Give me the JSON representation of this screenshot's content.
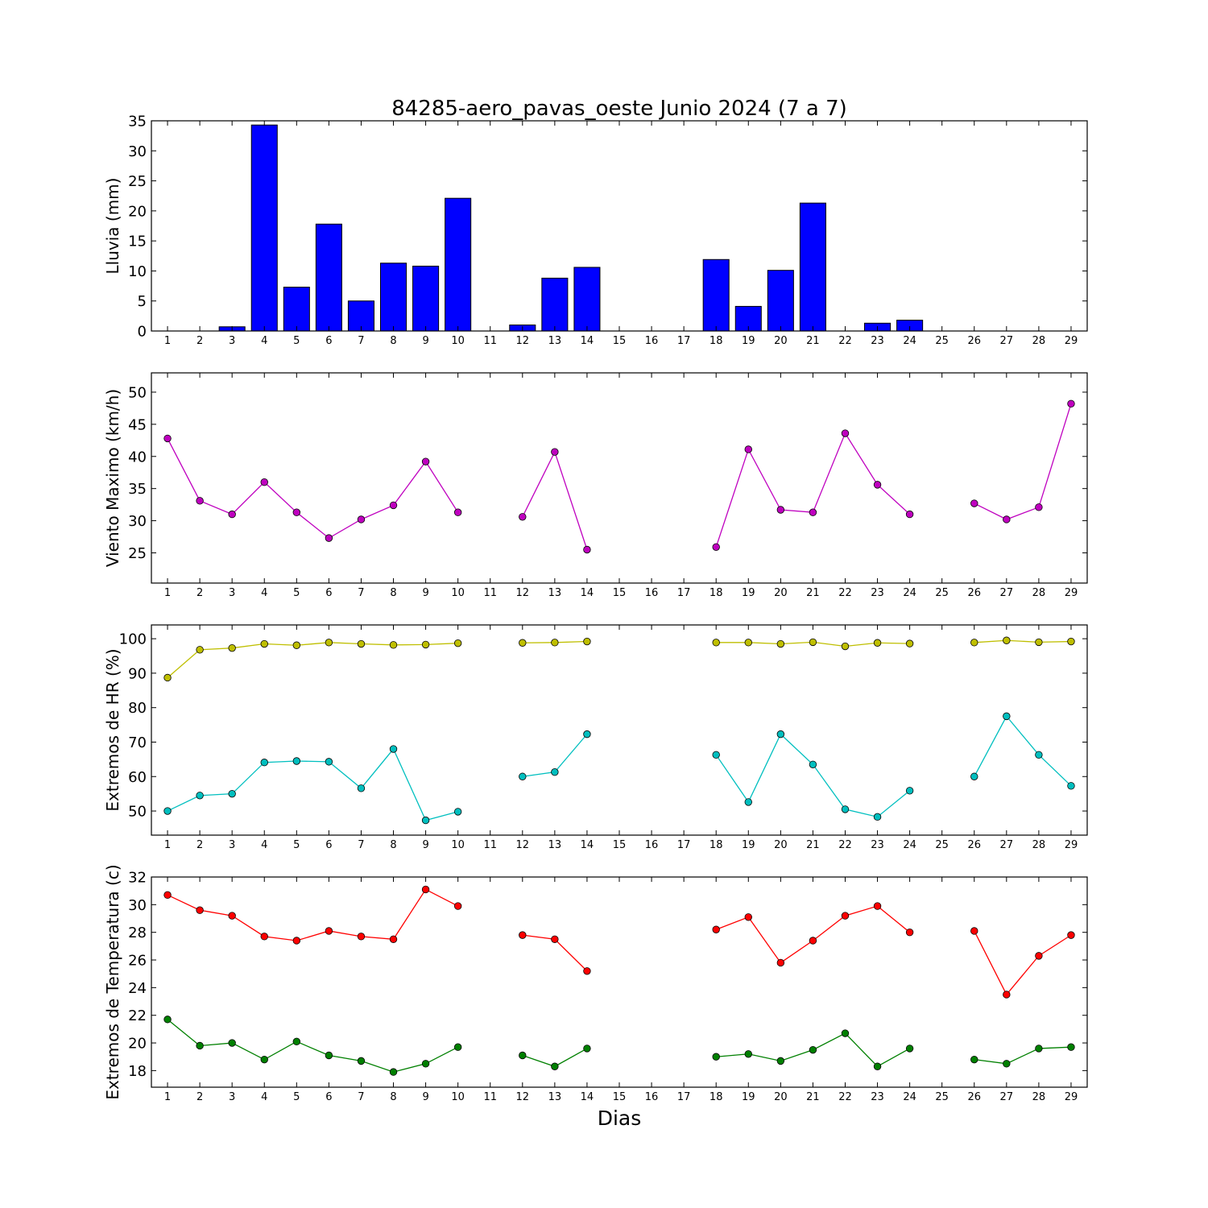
{
  "figure": {
    "title": "84285-aero_pavas_oeste Junio 2024  (7 a 7)",
    "xlabel": "Dias"
  },
  "chart_data": [
    {
      "type": "bar",
      "ylabel": "Lluvia (mm)",
      "ylim": [
        0,
        35
      ],
      "yticks": [
        0,
        5,
        10,
        15,
        20,
        25,
        30,
        35
      ],
      "xticks": [
        1,
        2,
        3,
        4,
        5,
        6,
        7,
        8,
        9,
        10,
        11,
        12,
        13,
        14,
        15,
        16,
        17,
        18,
        19,
        20,
        21,
        22,
        23,
        24,
        25,
        26,
        27,
        28,
        29
      ],
      "grid": false,
      "series": [
        {
          "color": "#0000ff",
          "x": [
            1,
            2,
            3,
            4,
            5,
            6,
            7,
            8,
            9,
            10,
            11,
            12,
            13,
            14,
            15,
            16,
            17,
            18,
            19,
            20,
            21,
            22,
            23,
            24,
            25,
            26,
            27,
            28,
            29
          ],
          "values": [
            0,
            0,
            0.7,
            34.3,
            7.3,
            17.8,
            5.0,
            11.3,
            10.8,
            22.1,
            0,
            1.0,
            8.8,
            10.6,
            0,
            0,
            0,
            11.9,
            4.1,
            10.1,
            21.3,
            0,
            1.3,
            1.8,
            0,
            0,
            0,
            0,
            0
          ]
        }
      ]
    },
    {
      "type": "line",
      "ylabel": "Viento Maximo (km/h)",
      "ylim": [
        20.3,
        53
      ],
      "yticks": [
        25,
        30,
        35,
        40,
        45,
        50
      ],
      "xticks": [
        1,
        2,
        3,
        4,
        5,
        6,
        7,
        8,
        9,
        10,
        11,
        12,
        13,
        14,
        15,
        16,
        17,
        18,
        19,
        20,
        21,
        22,
        23,
        24,
        25,
        26,
        27,
        28,
        29
      ],
      "grid": false,
      "series": [
        {
          "color": "#bf00bf",
          "x": [
            1,
            2,
            3,
            4,
            5,
            6,
            7,
            8,
            9,
            10,
            11,
            12,
            13,
            14,
            15,
            16,
            17,
            18,
            19,
            20,
            21,
            22,
            23,
            24,
            25,
            26,
            27,
            28,
            29
          ],
          "values": [
            42.8,
            33.1,
            31.0,
            36.0,
            31.3,
            27.3,
            30.2,
            32.4,
            39.2,
            31.3,
            null,
            30.6,
            40.7,
            25.5,
            null,
            null,
            null,
            25.9,
            41.1,
            31.7,
            31.3,
            43.6,
            35.6,
            31.0,
            null,
            32.7,
            30.2,
            32.1,
            48.2
          ]
        }
      ]
    },
    {
      "type": "line",
      "ylabel": "Extremos de HR (%)",
      "ylim": [
        43,
        104
      ],
      "yticks": [
        50,
        60,
        70,
        80,
        90,
        100
      ],
      "xticks": [
        1,
        2,
        3,
        4,
        5,
        6,
        7,
        8,
        9,
        10,
        11,
        12,
        13,
        14,
        15,
        16,
        17,
        18,
        19,
        20,
        21,
        22,
        23,
        24,
        25,
        26,
        27,
        28,
        29
      ],
      "grid": false,
      "series": [
        {
          "color": "#bfbf00",
          "x": [
            1,
            2,
            3,
            4,
            5,
            6,
            7,
            8,
            9,
            10,
            11,
            12,
            13,
            14,
            15,
            16,
            17,
            18,
            19,
            20,
            21,
            22,
            23,
            24,
            25,
            26,
            27,
            28,
            29
          ],
          "values": [
            88.7,
            96.8,
            97.3,
            98.5,
            98.1,
            98.9,
            98.5,
            98.2,
            98.3,
            98.7,
            null,
            98.8,
            98.9,
            99.2,
            null,
            null,
            null,
            98.9,
            98.9,
            98.5,
            99.0,
            97.8,
            98.8,
            98.6,
            null,
            98.9,
            99.5,
            99.0,
            99.2
          ]
        },
        {
          "color": "#00bfbf",
          "x": [
            1,
            2,
            3,
            4,
            5,
            6,
            7,
            8,
            9,
            10,
            11,
            12,
            13,
            14,
            15,
            16,
            17,
            18,
            19,
            20,
            21,
            22,
            23,
            24,
            25,
            26,
            27,
            28,
            29
          ],
          "values": [
            50.0,
            54.5,
            55.0,
            64.1,
            64.5,
            64.3,
            56.6,
            68.0,
            47.3,
            49.8,
            null,
            60.0,
            61.3,
            72.3,
            null,
            null,
            null,
            66.3,
            52.6,
            72.3,
            63.5,
            50.5,
            48.3,
            55.9,
            null,
            60.0,
            77.5,
            66.3,
            57.3
          ]
        }
      ]
    },
    {
      "type": "line",
      "ylabel": "Extremos de Temperatura (c)",
      "ylim": [
        16.8,
        32
      ],
      "yticks": [
        18,
        20,
        22,
        24,
        26,
        28,
        30,
        32
      ],
      "xticks": [
        1,
        2,
        3,
        4,
        5,
        6,
        7,
        8,
        9,
        10,
        11,
        12,
        13,
        14,
        15,
        16,
        17,
        18,
        19,
        20,
        21,
        22,
        23,
        24,
        25,
        26,
        27,
        28,
        29
      ],
      "grid": false,
      "series": [
        {
          "color": "#ff0000",
          "x": [
            1,
            2,
            3,
            4,
            5,
            6,
            7,
            8,
            9,
            10,
            11,
            12,
            13,
            14,
            15,
            16,
            17,
            18,
            19,
            20,
            21,
            22,
            23,
            24,
            25,
            26,
            27,
            28,
            29
          ],
          "values": [
            30.7,
            29.6,
            29.2,
            27.7,
            27.4,
            28.1,
            27.7,
            27.5,
            31.1,
            29.9,
            null,
            27.8,
            27.5,
            25.2,
            null,
            null,
            null,
            28.2,
            29.1,
            25.8,
            27.4,
            29.2,
            29.9,
            28.0,
            null,
            28.1,
            23.5,
            26.3,
            27.8
          ]
        },
        {
          "color": "#008000",
          "x": [
            1,
            2,
            3,
            4,
            5,
            6,
            7,
            8,
            9,
            10,
            11,
            12,
            13,
            14,
            15,
            16,
            17,
            18,
            19,
            20,
            21,
            22,
            23,
            24,
            25,
            26,
            27,
            28,
            29
          ],
          "values": [
            21.7,
            19.8,
            20.0,
            18.8,
            20.1,
            19.1,
            18.7,
            17.9,
            18.5,
            19.7,
            null,
            19.1,
            18.3,
            19.6,
            null,
            null,
            null,
            19.0,
            19.2,
            18.7,
            19.5,
            20.7,
            18.3,
            19.6,
            null,
            18.8,
            18.5,
            19.6,
            19.7
          ]
        }
      ]
    }
  ]
}
